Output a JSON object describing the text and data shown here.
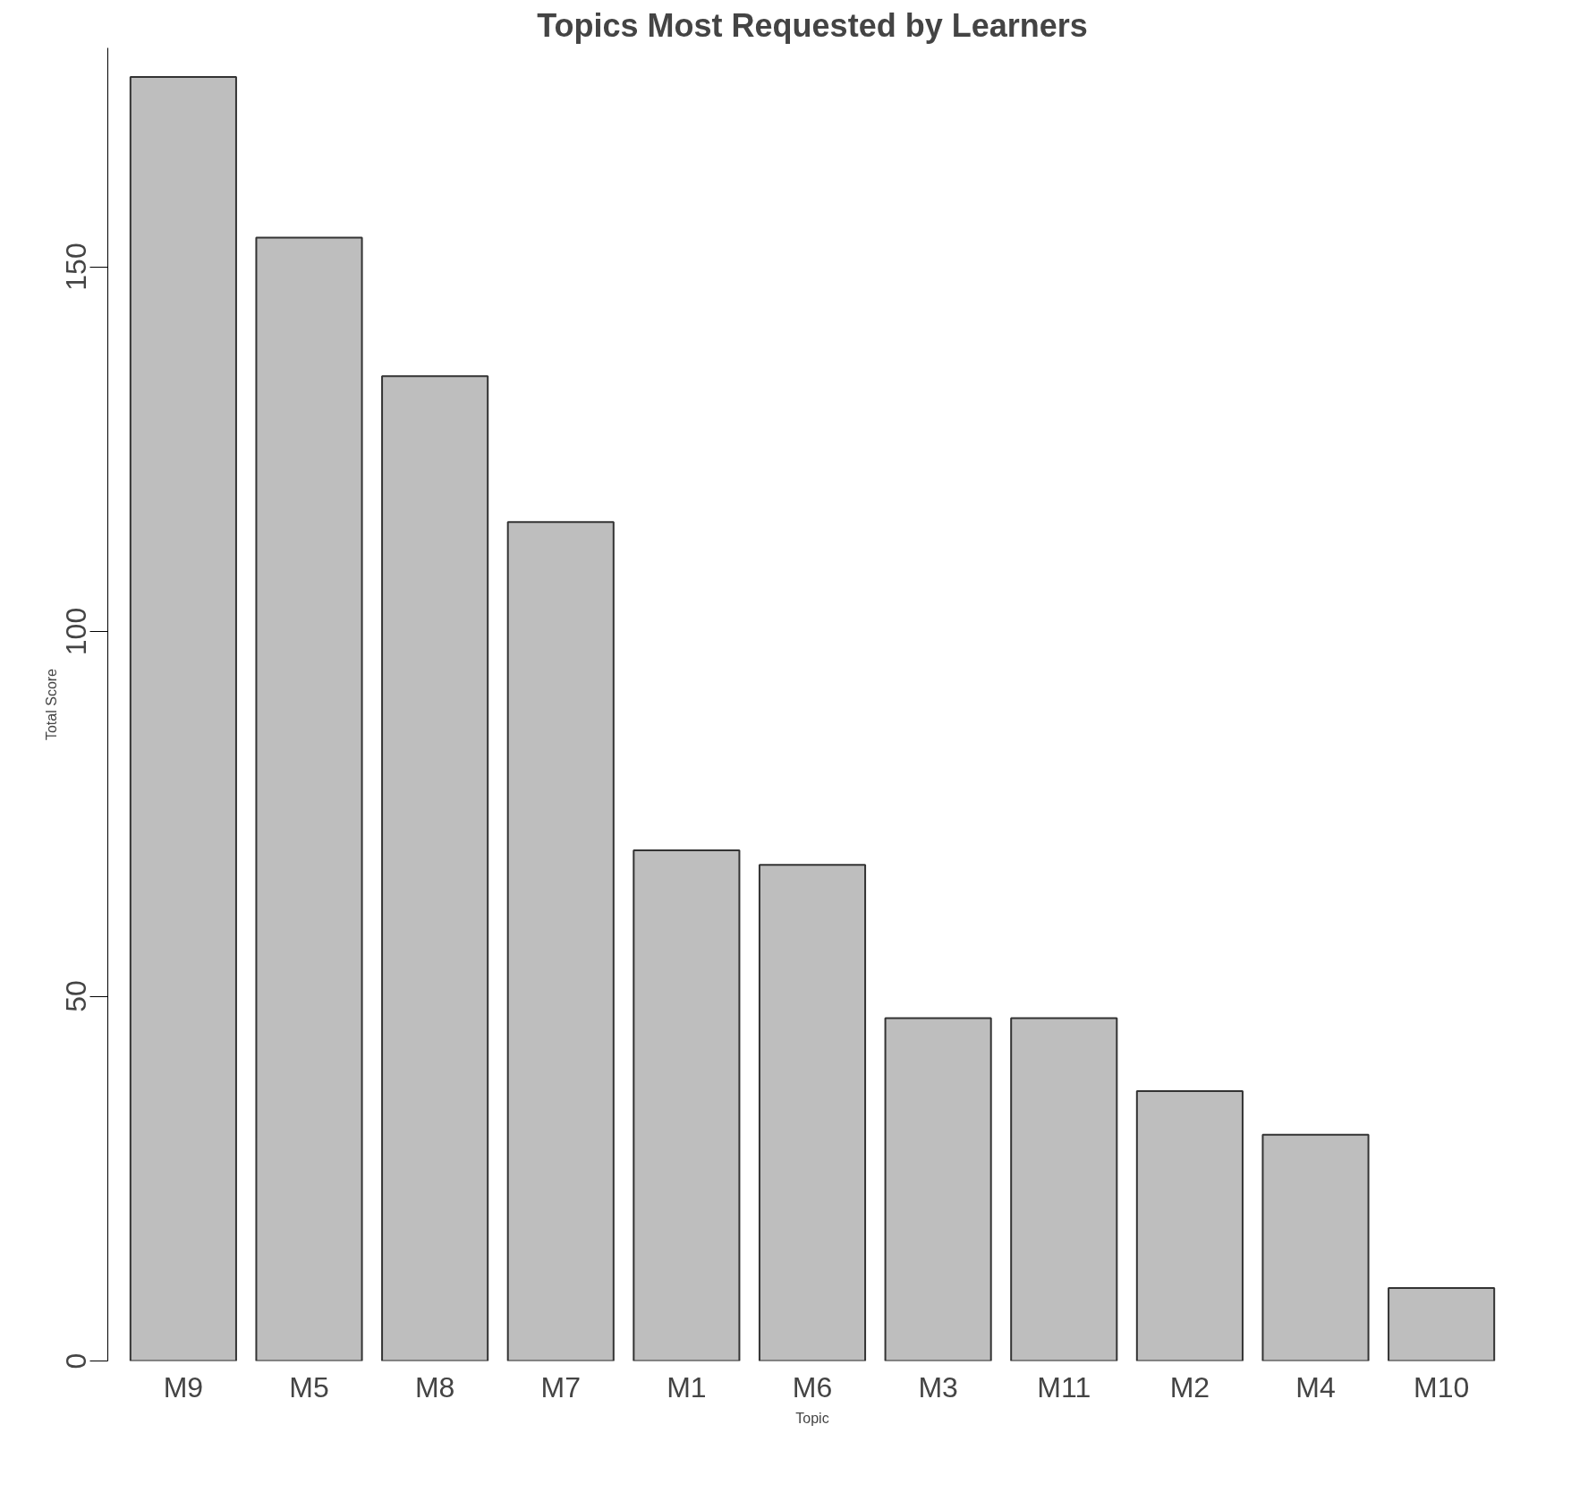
{
  "chart_data": {
    "type": "bar",
    "title": "Topics Most Requested by Learners",
    "xlabel": "Topic",
    "ylabel": "Total Score",
    "categories": [
      "M9",
      "M5",
      "M8",
      "M7",
      "M1",
      "M6",
      "M3",
      "M11",
      "M2",
      "M4",
      "M10"
    ],
    "values": [
      176,
      154,
      135,
      115,
      70,
      68,
      47,
      47,
      37,
      31,
      10
    ],
    "color": "#bebebe",
    "ylim": [
      0,
      180
    ],
    "yticks": [
      0,
      50,
      100,
      150
    ],
    "grid": false
  }
}
